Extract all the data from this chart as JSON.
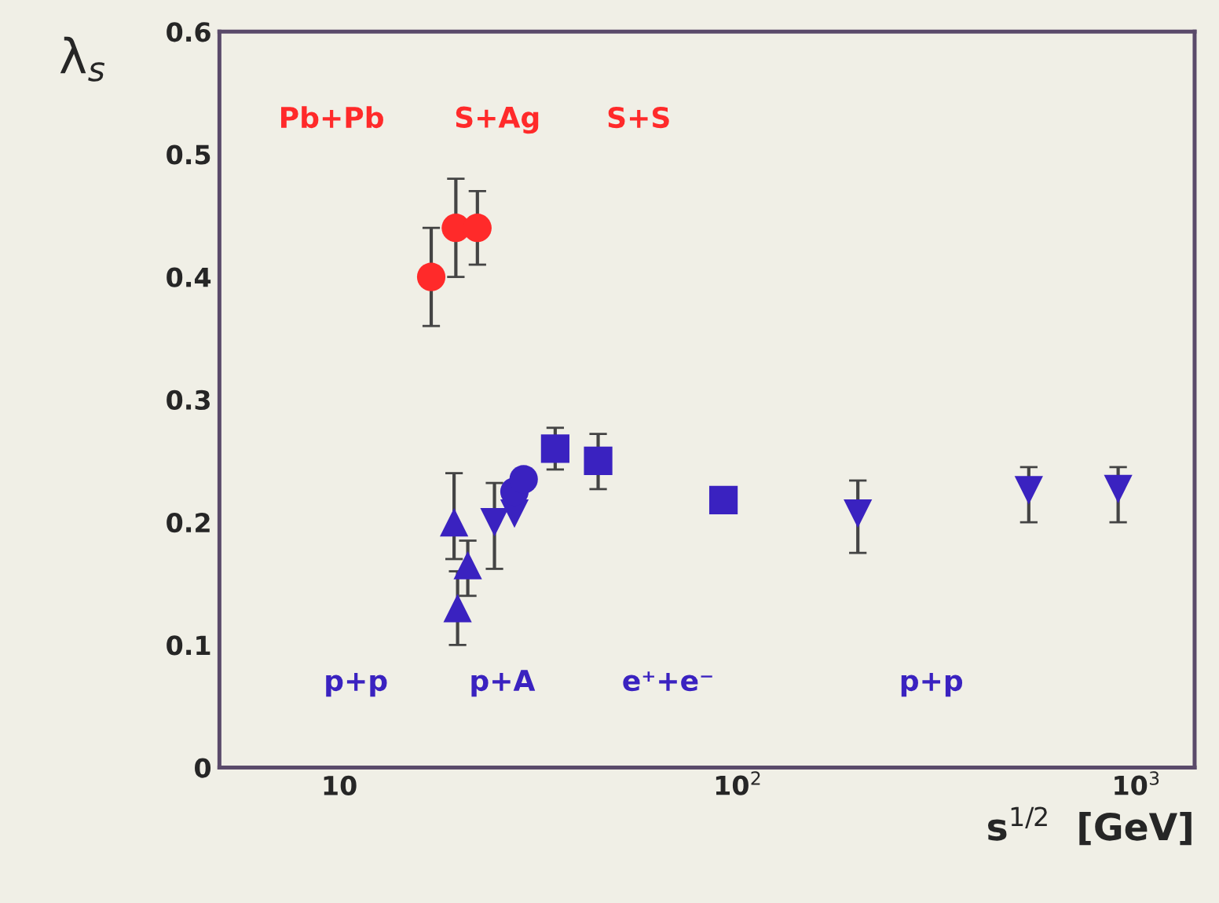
{
  "chart_data": {
    "type": "scatter",
    "xlabel": "s$^{1/2}$  [GeV]",
    "ylabel": "λ$_{s}$",
    "log": "x",
    "grid": false,
    "xlim": [
      5,
      1400
    ],
    "xticks": [
      {
        "value": 10,
        "label": "10"
      },
      {
        "value": 100,
        "label": "10$^{2}$"
      },
      {
        "value": 1000,
        "label": "10$^{3}$"
      }
    ],
    "ylim": [
      0,
      0.6
    ],
    "yticks": [
      0,
      0.1,
      0.2,
      0.3,
      0.4,
      0.5,
      0.6
    ],
    "series": [
      {
        "color": "#ff2a2a",
        "marker": "circle",
        "x": [
          17,
          19.6,
          22.2
        ],
        "values": [
          0.4,
          0.44,
          0.44
        ],
        "errors": [
          [
            0.36,
            0.44
          ],
          [
            0.4,
            0.48
          ],
          [
            0.41,
            0.47
          ]
        ]
      },
      {
        "color": "#3a22c0",
        "marker": "triangle",
        "x": [
          19.4,
          21,
          19.8
        ],
        "values": [
          0.2,
          0.165,
          0.13
        ],
        "errors": [
          [
            0.17,
            0.24
          ],
          [
            0.14,
            0.185
          ],
          [
            0.1,
            0.16
          ]
        ]
      },
      {
        "color": "#3a22c0",
        "marker": "triangle_down",
        "x": [
          24.5,
          27.5,
          200,
          537,
          900
        ],
        "values": [
          0.2,
          0.207,
          0.207,
          0.226,
          0.227
        ],
        "errors": [
          [
            0.162,
            0.232
          ],
          null,
          [
            0.175,
            0.234
          ],
          [
            0.2,
            0.245
          ],
          [
            0.2,
            0.245
          ]
        ]
      },
      {
        "color": "#3a22c0",
        "marker": "circle",
        "x": [
          27.5,
          29
        ],
        "values": [
          0.225,
          0.235
        ],
        "errors": [
          null,
          null
        ]
      },
      {
        "color": "#3a22c0",
        "marker": "square",
        "x": [
          34.8,
          44.6,
          92
        ],
        "values": [
          0.26,
          0.25,
          0.218
        ],
        "errors": [
          [
            0.243,
            0.277
          ],
          [
            0.227,
            0.272
          ],
          null
        ]
      }
    ],
    "annotations": [
      "Pb+Pb",
      "S+Ag",
      "S+S",
      "p+p",
      "p+A",
      "e⁺+e⁻",
      "p+p"
    ]
  }
}
